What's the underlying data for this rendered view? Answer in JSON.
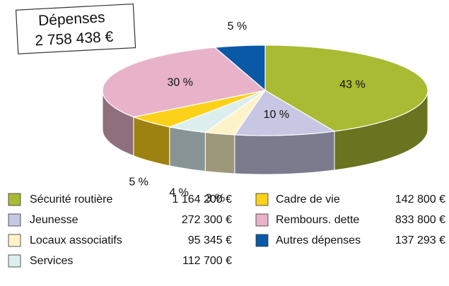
{
  "chart_data": {
    "type": "pie",
    "title": "Dépenses",
    "subtitle": "2 758 438  €",
    "categories": [
      "Sécurité routière",
      "Jeunesse",
      "Locaux associatifs",
      "Services",
      "Cadre de vie",
      "Rembours. dette",
      "Autres dépenses"
    ],
    "values": [
      43,
      10,
      3,
      4,
      5,
      30,
      5
    ],
    "value_labels": [
      "43 %",
      "10 %",
      "3 %",
      "4 %",
      "5 %",
      "30 %",
      "5 %"
    ],
    "amounts": [
      "1 164 200 €",
      "272 300 €",
      "95 345 €",
      "112 700 €",
      "142 800 €",
      "833 800 €",
      "137 293 €"
    ],
    "colors": [
      "#a8bb32",
      "#c7c6e3",
      "#fdf3c8",
      "#dcefee",
      "#fcd11a",
      "#e8b3c9",
      "#0a59a6"
    ]
  }
}
